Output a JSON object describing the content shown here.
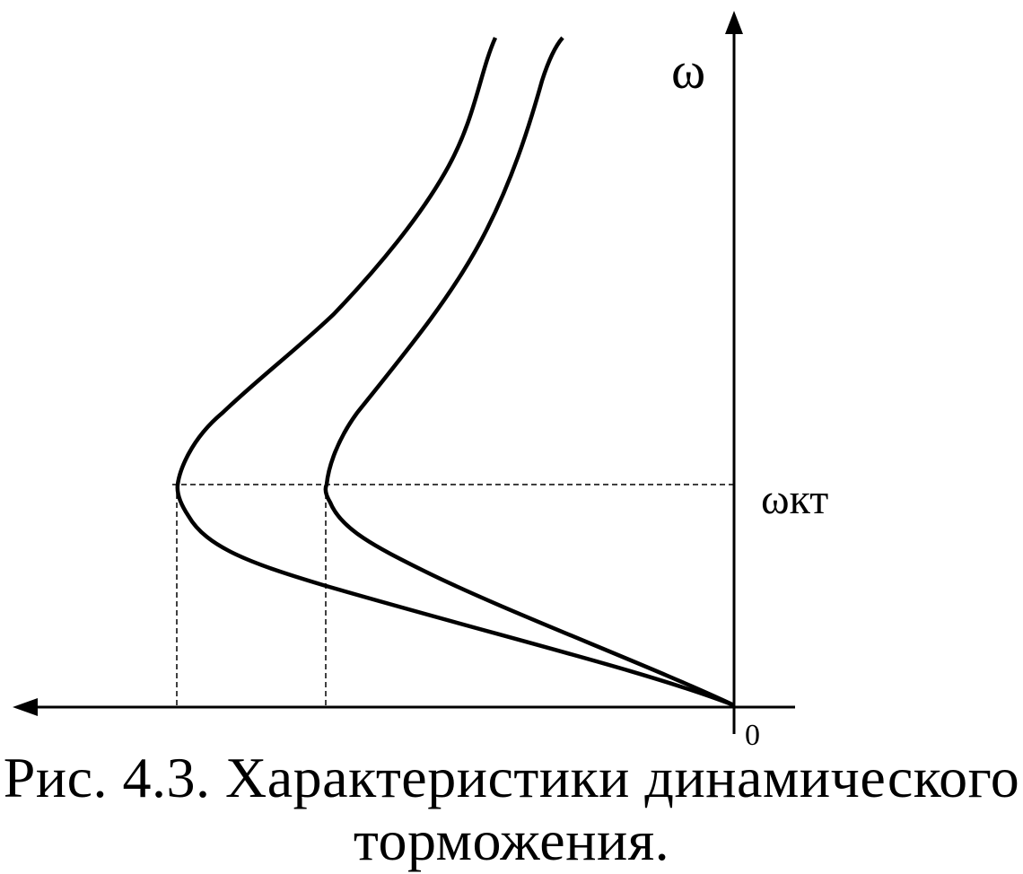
{
  "diagram": {
    "y_axis_label": "ω",
    "critical_speed_label": "ωкт",
    "origin_label": "0",
    "curve_count": 2
  },
  "caption": {
    "line1": "Рис. 4.3. Характеристики динамического",
    "line2": "торможения."
  }
}
